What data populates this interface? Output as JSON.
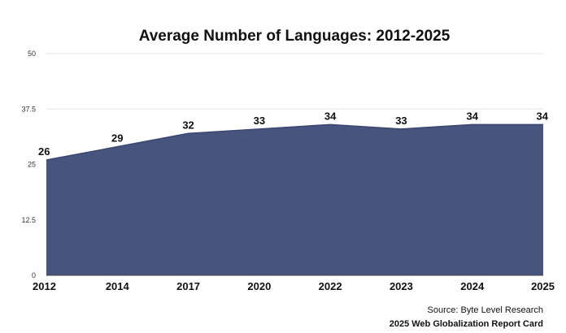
{
  "chart_data": {
    "type": "area",
    "title": "Average Number of Languages: 2012-2025",
    "categories": [
      "2012",
      "2014",
      "2017",
      "2020",
      "2022",
      "2023",
      "2024",
      "2025"
    ],
    "series": [
      {
        "values": [
          26,
          29,
          32,
          33,
          34,
          33,
          34,
          34
        ]
      }
    ],
    "data_labels": [
      "26",
      "29",
      "32",
      "33",
      "34",
      "33",
      "34",
      "34"
    ],
    "y_ticks": [
      "0",
      "12.5",
      "25",
      "37.5",
      "50"
    ],
    "ylim": [
      0,
      50
    ],
    "grid": true,
    "legend": "none",
    "fill_color": "#46547e"
  },
  "footer": {
    "source": "Source: Byte Level Research",
    "report": "2025 Web Globalization Report Card"
  }
}
